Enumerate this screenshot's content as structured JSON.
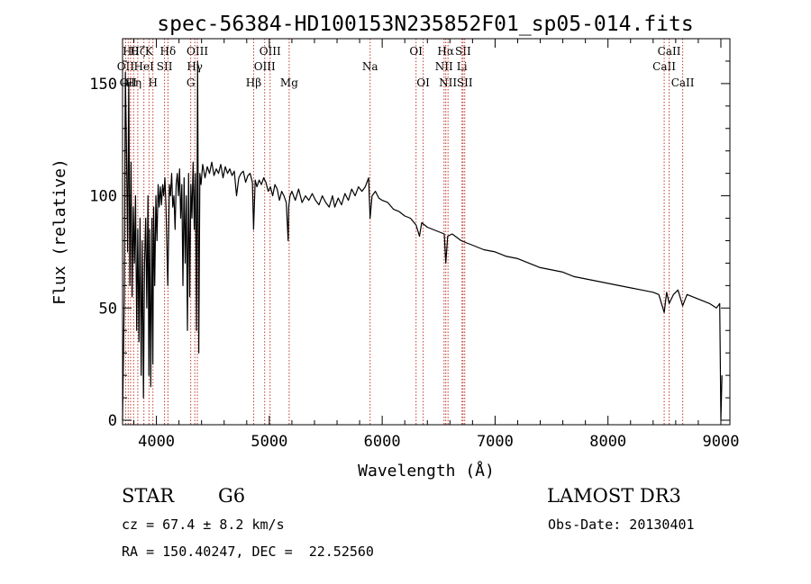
{
  "chart_data": {
    "type": "line",
    "title": "spec-56384-HD100153N235852F01_sp05-014.fits",
    "xlabel": "Wavelength (Å)",
    "ylabel": "Flux (relative)",
    "xlim": [
      3700,
      9080
    ],
    "ylim": [
      -2,
      170
    ],
    "xticks": [
      4000,
      5000,
      6000,
      7000,
      8000,
      9000
    ],
    "xtick_labels": [
      "4000",
      "5000",
      "6000",
      "7000",
      "8000",
      "9000"
    ],
    "yticks": [
      0,
      50,
      100,
      150
    ],
    "ytick_labels": [
      "0",
      "50",
      "100",
      "150"
    ],
    "series": [
      {
        "name": "flux",
        "x": [
          3700,
          3715,
          3725,
          3735,
          3745,
          3755,
          3765,
          3775,
          3785,
          3795,
          3805,
          3815,
          3825,
          3835,
          3845,
          3855,
          3865,
          3875,
          3885,
          3895,
          3905,
          3915,
          3925,
          3933,
          3940,
          3950,
          3960,
          3968,
          3975,
          3985,
          3995,
          4005,
          4015,
          4025,
          4035,
          4045,
          4055,
          4065,
          4075,
          4085,
          4101,
          4115,
          4125,
          4135,
          4145,
          4155,
          4165,
          4175,
          4185,
          4195,
          4205,
          4215,
          4225,
          4235,
          4245,
          4255,
          4265,
          4275,
          4285,
          4295,
          4305,
          4315,
          4325,
          4335,
          4345,
          4355,
          4365,
          4375,
          4385,
          4395,
          4410,
          4430,
          4450,
          4470,
          4490,
          4510,
          4530,
          4550,
          4570,
          4590,
          4610,
          4630,
          4650,
          4670,
          4690,
          4710,
          4730,
          4750,
          4770,
          4790,
          4810,
          4830,
          4850,
          4861,
          4875,
          4890,
          4910,
          4930,
          4950,
          4970,
          4990,
          5010,
          5030,
          5050,
          5070,
          5090,
          5110,
          5130,
          5150,
          5167,
          5172,
          5183,
          5200,
          5230,
          5260,
          5290,
          5320,
          5350,
          5380,
          5410,
          5440,
          5470,
          5500,
          5530,
          5560,
          5580,
          5610,
          5640,
          5670,
          5700,
          5730,
          5760,
          5790,
          5820,
          5850,
          5880,
          5893,
          5910,
          5940,
          5970,
          6000,
          6050,
          6100,
          6150,
          6200,
          6250,
          6300,
          6330,
          6350,
          6400,
          6450,
          6500,
          6550,
          6563,
          6580,
          6620,
          6700,
          6800,
          6900,
          7000,
          7100,
          7200,
          7300,
          7400,
          7500,
          7600,
          7700,
          7800,
          7900,
          8000,
          8100,
          8200,
          8300,
          8400,
          8450,
          8498,
          8520,
          8542,
          8580,
          8620,
          8662,
          8700,
          8750,
          8800,
          8850,
          8900,
          8960,
          8990,
          9000,
          9010
        ],
        "y": [
          0,
          55,
          155,
          120,
          75,
          150,
          60,
          115,
          55,
          95,
          70,
          100,
          40,
          85,
          35,
          90,
          20,
          80,
          10,
          70,
          90,
          50,
          100,
          20,
          85,
          15,
          90,
          25,
          95,
          60,
          100,
          80,
          105,
          95,
          104,
          96,
          105,
          100,
          108,
          95,
          60,
          105,
          100,
          110,
          95,
          100,
          85,
          105,
          110,
          100,
          112,
          90,
          105,
          60,
          108,
          70,
          100,
          40,
          110,
          55,
          105,
          90,
          115,
          85,
          110,
          40,
          160,
          30,
          110,
          105,
          114,
          108,
          113,
          110,
          115,
          109,
          112,
          110,
          114,
          108,
          113,
          110,
          112,
          109,
          111,
          100,
          108,
          110,
          111,
          106,
          109,
          110,
          106,
          85,
          107,
          104,
          107,
          105,
          108,
          106,
          102,
          104,
          100,
          105,
          103,
          98,
          102,
          100,
          97,
          80,
          95,
          100,
          102,
          98,
          103,
          97,
          100,
          98,
          101,
          98,
          96,
          100,
          97,
          95,
          100,
          95,
          99,
          96,
          101,
          98,
          103,
          100,
          104,
          102,
          104,
          108,
          90,
          100,
          102,
          99,
          98,
          97,
          94,
          93,
          91,
          90,
          87,
          82,
          88,
          86,
          85,
          84,
          83,
          70,
          82,
          83,
          80,
          78,
          76,
          75,
          73,
          72,
          70,
          68,
          67,
          66,
          64,
          63,
          62,
          61,
          60,
          59,
          58,
          57,
          56,
          48,
          57,
          52,
          56,
          58,
          51,
          56,
          55,
          54,
          53,
          52,
          50,
          52,
          0,
          20
        ]
      }
    ],
    "line_markers": [
      {
        "x": 3727,
        "label": "OII",
        "row": 1
      },
      {
        "x": 3750,
        "label": "OII",
        "row": 2
      },
      {
        "x": 3771,
        "label": "Hθ",
        "row": 0
      },
      {
        "x": 3798,
        "label": "Hη",
        "row": 2
      },
      {
        "x": 3835,
        "label": "Hζ",
        "row": 0
      },
      {
        "x": 3889,
        "label": "HeI",
        "row": 1
      },
      {
        "x": 3934,
        "label": "K",
        "row": 0
      },
      {
        "x": 3969,
        "label": "H",
        "row": 2
      },
      {
        "x": 4072,
        "label": "SII",
        "row": 1
      },
      {
        "x": 4102,
        "label": "Hδ",
        "row": 0
      },
      {
        "x": 4304,
        "label": "G",
        "row": 2
      },
      {
        "x": 4340,
        "label": "Hγ",
        "row": 1
      },
      {
        "x": 4363,
        "label": "OIII",
        "row": 0
      },
      {
        "x": 4861,
        "label": "Hβ",
        "row": 2
      },
      {
        "x": 4959,
        "label": "OIII",
        "row": 1
      },
      {
        "x": 5007,
        "label": "OIII",
        "row": 0
      },
      {
        "x": 5176,
        "label": "Mg",
        "row": 2
      },
      {
        "x": 5893,
        "label": "Na",
        "row": 1
      },
      {
        "x": 6300,
        "label": "OI",
        "row": 0
      },
      {
        "x": 6363,
        "label": "OI",
        "row": 2
      },
      {
        "x": 6548,
        "label": "NII",
        "row": 1
      },
      {
        "x": 6563,
        "label": "Hα",
        "row": 0
      },
      {
        "x": 6583,
        "label": "NII",
        "row": 2
      },
      {
        "x": 6707,
        "label": "Li",
        "row": 1
      },
      {
        "x": 6716,
        "label": "SII",
        "row": 0
      },
      {
        "x": 6731,
        "label": "SII",
        "row": 2
      },
      {
        "x": 8498,
        "label": "CaII",
        "row": 1
      },
      {
        "x": 8542,
        "label": "CaII",
        "row": 0
      },
      {
        "x": 8662,
        "label": "CaII",
        "row": 2
      }
    ]
  },
  "info": {
    "object_class": "STAR",
    "subclass": "G6",
    "survey": "LAMOST DR3",
    "redshift": "cz = 67.4 ± 8.2 km/s",
    "obs_date": "Obs-Date: 20130401",
    "coords": "RA = 150.40247, DEC =  22.52560"
  }
}
